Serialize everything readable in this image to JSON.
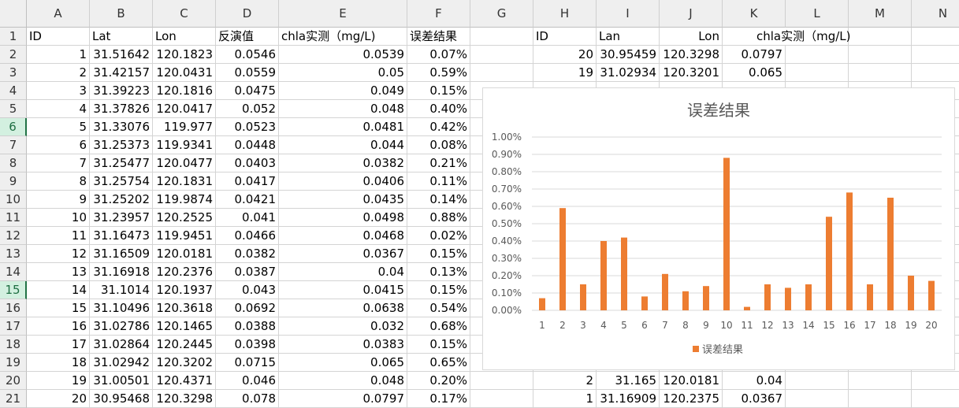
{
  "sheet": {
    "columns": [
      "A",
      "B",
      "C",
      "D",
      "E",
      "F",
      "G",
      "H",
      "I",
      "J",
      "K",
      "L",
      "M",
      "N"
    ],
    "rows": [
      "1",
      "2",
      "3",
      "4",
      "5",
      "6",
      "7",
      "8",
      "9",
      "10",
      "11",
      "12",
      "13",
      "14",
      "15",
      "16",
      "17",
      "18",
      "19",
      "20",
      "21"
    ],
    "selected_rows": [
      "6",
      "15"
    ],
    "left_header": [
      "ID",
      "Lat",
      "Lon",
      "反演值",
      "chla实测（mg/L)",
      "误差结果"
    ],
    "left_table": [
      [
        "1",
        "31.51642",
        "120.1823",
        "0.0546",
        "0.0539",
        "0.07%"
      ],
      [
        "2",
        "31.42157",
        "120.0431",
        "0.0559",
        "0.05",
        "0.59%"
      ],
      [
        "3",
        "31.39223",
        "120.1816",
        "0.0475",
        "0.049",
        "0.15%"
      ],
      [
        "4",
        "31.37826",
        "120.0417",
        "0.052",
        "0.048",
        "0.40%"
      ],
      [
        "5",
        "31.33076",
        "119.977",
        "0.0523",
        "0.0481",
        "0.42%"
      ],
      [
        "6",
        "31.25373",
        "119.9341",
        "0.0448",
        "0.044",
        "0.08%"
      ],
      [
        "7",
        "31.25477",
        "120.0477",
        "0.0403",
        "0.0382",
        "0.21%"
      ],
      [
        "8",
        "31.25754",
        "120.1831",
        "0.0417",
        "0.0406",
        "0.11%"
      ],
      [
        "9",
        "31.25202",
        "119.9874",
        "0.0421",
        "0.0435",
        "0.14%"
      ],
      [
        "10",
        "31.23957",
        "120.2525",
        "0.041",
        "0.0498",
        "0.88%"
      ],
      [
        "11",
        "31.16473",
        "119.9451",
        "0.0466",
        "0.0468",
        "0.02%"
      ],
      [
        "12",
        "31.16509",
        "120.0181",
        "0.0382",
        "0.0367",
        "0.15%"
      ],
      [
        "13",
        "31.16918",
        "120.2376",
        "0.0387",
        "0.04",
        "0.13%"
      ],
      [
        "14",
        "31.1014",
        "120.1937",
        "0.043",
        "0.0415",
        "0.15%"
      ],
      [
        "15",
        "31.10496",
        "120.3618",
        "0.0692",
        "0.0638",
        "0.54%"
      ],
      [
        "16",
        "31.02786",
        "120.1465",
        "0.0388",
        "0.032",
        "0.68%"
      ],
      [
        "17",
        "31.02864",
        "120.2445",
        "0.0398",
        "0.0383",
        "0.15%"
      ],
      [
        "18",
        "31.02942",
        "120.3202",
        "0.0715",
        "0.065",
        "0.65%"
      ],
      [
        "19",
        "31.00501",
        "120.4371",
        "0.046",
        "0.048",
        "0.20%"
      ],
      [
        "20",
        "30.95468",
        "120.3298",
        "0.078",
        "0.0797",
        "0.17%"
      ]
    ],
    "right_header": [
      "ID",
      "Lan",
      "Lon",
      "chla实测（mg/L)"
    ],
    "right_rows_top": [
      [
        "20",
        "30.95459",
        "120.3298",
        "0.0797"
      ],
      [
        "19",
        "31.02934",
        "120.3201",
        "0.065"
      ]
    ],
    "right_rows_bottom": [
      [
        "2",
        "31.165",
        "120.0181",
        "0.04"
      ],
      [
        "1",
        "31.16909",
        "120.2375",
        "0.0367"
      ]
    ]
  },
  "chart_data": {
    "type": "bar",
    "title": "误差结果",
    "categories": [
      "1",
      "2",
      "3",
      "4",
      "5",
      "6",
      "7",
      "8",
      "9",
      "10",
      "11",
      "12",
      "13",
      "14",
      "15",
      "16",
      "17",
      "18",
      "19",
      "20"
    ],
    "series": [
      {
        "name": "误差结果",
        "values": [
          0.07,
          0.59,
          0.15,
          0.4,
          0.42,
          0.08,
          0.21,
          0.11,
          0.14,
          0.88,
          0.02,
          0.15,
          0.13,
          0.15,
          0.54,
          0.68,
          0.15,
          0.65,
          0.2,
          0.17
        ]
      }
    ],
    "ylim": [
      0,
      1.0
    ],
    "yticks": [
      "0.00%",
      "0.10%",
      "0.20%",
      "0.30%",
      "0.40%",
      "0.50%",
      "0.60%",
      "0.70%",
      "0.80%",
      "0.90%",
      "1.00%"
    ],
    "legend_position": "bottom",
    "grid": true,
    "bar_color": "#ed7d31"
  }
}
